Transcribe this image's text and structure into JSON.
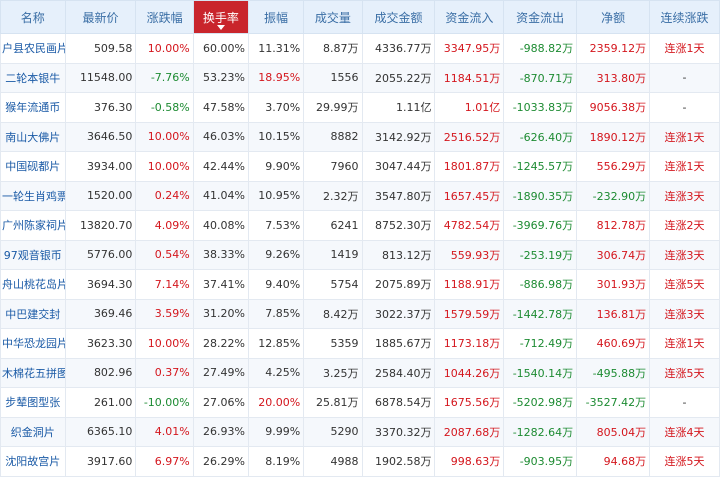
{
  "headers": [
    "名称",
    "最新价",
    "涨跌幅",
    "换手率",
    "振幅",
    "成交量",
    "成交金额",
    "资金流入",
    "资金流出",
    "净额",
    "连续涨跌"
  ],
  "active_column": 3,
  "colors": {
    "up": "#d4161d",
    "down": "#1d8b32",
    "header_bg": "#e6f0fb",
    "active_bg": "#c9252c"
  },
  "rows": [
    {
      "name": "户县农民画片",
      "price": "509.58",
      "chg": "10.00%",
      "chg_dir": "up",
      "turnover": "60.00%",
      "amp": "11.31%",
      "amp_dir": "flat",
      "vol": "8.87万",
      "amount": "4336.77万",
      "inflow": "3347.95万",
      "outflow": "-988.82万",
      "net": "2359.12万",
      "net_dir": "up",
      "streak": "连涨1天",
      "streak_dir": "up"
    },
    {
      "name": "二轮本银牛",
      "price": "11548.00",
      "chg": "-7.76%",
      "chg_dir": "down",
      "turnover": "53.23%",
      "amp": "18.95%",
      "amp_dir": "up",
      "vol": "1556",
      "amount": "2055.22万",
      "inflow": "1184.51万",
      "outflow": "-870.71万",
      "net": "313.80万",
      "net_dir": "up",
      "streak": "-",
      "streak_dir": "flat"
    },
    {
      "name": "猴年流通币",
      "price": "376.30",
      "chg": "-0.58%",
      "chg_dir": "down",
      "turnover": "47.58%",
      "amp": "3.70%",
      "amp_dir": "flat",
      "vol": "29.99万",
      "amount": "1.11亿",
      "inflow": "1.01亿",
      "outflow": "-1033.83万",
      "net": "9056.38万",
      "net_dir": "up",
      "streak": "-",
      "streak_dir": "flat"
    },
    {
      "name": "南山大佛片",
      "price": "3646.50",
      "chg": "10.00%",
      "chg_dir": "up",
      "turnover": "46.03%",
      "amp": "10.15%",
      "amp_dir": "flat",
      "vol": "8882",
      "amount": "3142.92万",
      "inflow": "2516.52万",
      "outflow": "-626.40万",
      "net": "1890.12万",
      "net_dir": "up",
      "streak": "连涨1天",
      "streak_dir": "up"
    },
    {
      "name": "中国砚都片",
      "price": "3934.00",
      "chg": "10.00%",
      "chg_dir": "up",
      "turnover": "42.44%",
      "amp": "9.90%",
      "amp_dir": "flat",
      "vol": "7960",
      "amount": "3047.44万",
      "inflow": "1801.87万",
      "outflow": "-1245.57万",
      "net": "556.29万",
      "net_dir": "up",
      "streak": "连涨1天",
      "streak_dir": "up"
    },
    {
      "name": "一轮生肖鸡票",
      "price": "1520.00",
      "chg": "0.24%",
      "chg_dir": "up",
      "turnover": "41.04%",
      "amp": "10.95%",
      "amp_dir": "flat",
      "vol": "2.32万",
      "amount": "3547.80万",
      "inflow": "1657.45万",
      "outflow": "-1890.35万",
      "net": "-232.90万",
      "net_dir": "down",
      "streak": "连涨3天",
      "streak_dir": "up"
    },
    {
      "name": "广州陈家祠片",
      "price": "13820.70",
      "chg": "4.09%",
      "chg_dir": "up",
      "turnover": "40.08%",
      "amp": "7.53%",
      "amp_dir": "flat",
      "vol": "6241",
      "amount": "8752.30万",
      "inflow": "4782.54万",
      "outflow": "-3969.76万",
      "net": "812.78万",
      "net_dir": "up",
      "streak": "连涨2天",
      "streak_dir": "up"
    },
    {
      "name": "97观音银币",
      "price": "5776.00",
      "chg": "0.54%",
      "chg_dir": "up",
      "turnover": "38.33%",
      "amp": "9.26%",
      "amp_dir": "flat",
      "vol": "1419",
      "amount": "813.12万",
      "inflow": "559.93万",
      "outflow": "-253.19万",
      "net": "306.74万",
      "net_dir": "up",
      "streak": "连涨3天",
      "streak_dir": "up"
    },
    {
      "name": "舟山桃花岛片",
      "price": "3694.30",
      "chg": "7.14%",
      "chg_dir": "up",
      "turnover": "37.41%",
      "amp": "9.40%",
      "amp_dir": "flat",
      "vol": "5754",
      "amount": "2075.89万",
      "inflow": "1188.91万",
      "outflow": "-886.98万",
      "net": "301.93万",
      "net_dir": "up",
      "streak": "连涨5天",
      "streak_dir": "up"
    },
    {
      "name": "中巴建交封",
      "price": "369.46",
      "chg": "3.59%",
      "chg_dir": "up",
      "turnover": "31.20%",
      "amp": "7.85%",
      "amp_dir": "flat",
      "vol": "8.42万",
      "amount": "3022.37万",
      "inflow": "1579.59万",
      "outflow": "-1442.78万",
      "net": "136.81万",
      "net_dir": "up",
      "streak": "连涨3天",
      "streak_dir": "up"
    },
    {
      "name": "中华恐龙园片",
      "price": "3623.30",
      "chg": "10.00%",
      "chg_dir": "up",
      "turnover": "28.22%",
      "amp": "12.85%",
      "amp_dir": "flat",
      "vol": "5359",
      "amount": "1885.67万",
      "inflow": "1173.18万",
      "outflow": "-712.49万",
      "net": "460.69万",
      "net_dir": "up",
      "streak": "连涨1天",
      "streak_dir": "up"
    },
    {
      "name": "木棉花五拼图",
      "price": "802.96",
      "chg": "0.37%",
      "chg_dir": "up",
      "turnover": "27.49%",
      "amp": "4.25%",
      "amp_dir": "flat",
      "vol": "3.25万",
      "amount": "2584.40万",
      "inflow": "1044.26万",
      "outflow": "-1540.14万",
      "net": "-495.88万",
      "net_dir": "down",
      "streak": "连涨5天",
      "streak_dir": "up"
    },
    {
      "name": "步辇图型张",
      "price": "261.00",
      "chg": "-10.00%",
      "chg_dir": "down",
      "turnover": "27.06%",
      "amp": "20.00%",
      "amp_dir": "up",
      "vol": "25.81万",
      "amount": "6878.54万",
      "inflow": "1675.56万",
      "outflow": "-5202.98万",
      "net": "-3527.42万",
      "net_dir": "down",
      "streak": "-",
      "streak_dir": "flat"
    },
    {
      "name": "织金洞片",
      "price": "6365.10",
      "chg": "4.01%",
      "chg_dir": "up",
      "turnover": "26.93%",
      "amp": "9.99%",
      "amp_dir": "flat",
      "vol": "5290",
      "amount": "3370.32万",
      "inflow": "2087.68万",
      "outflow": "-1282.64万",
      "net": "805.04万",
      "net_dir": "up",
      "streak": "连涨4天",
      "streak_dir": "up"
    },
    {
      "name": "沈阳故宫片",
      "price": "3917.60",
      "chg": "6.97%",
      "chg_dir": "up",
      "turnover": "26.29%",
      "amp": "8.19%",
      "amp_dir": "flat",
      "vol": "4988",
      "amount": "1902.58万",
      "inflow": "998.63万",
      "outflow": "-903.95万",
      "net": "94.68万",
      "net_dir": "up",
      "streak": "连涨5天",
      "streak_dir": "up"
    }
  ]
}
